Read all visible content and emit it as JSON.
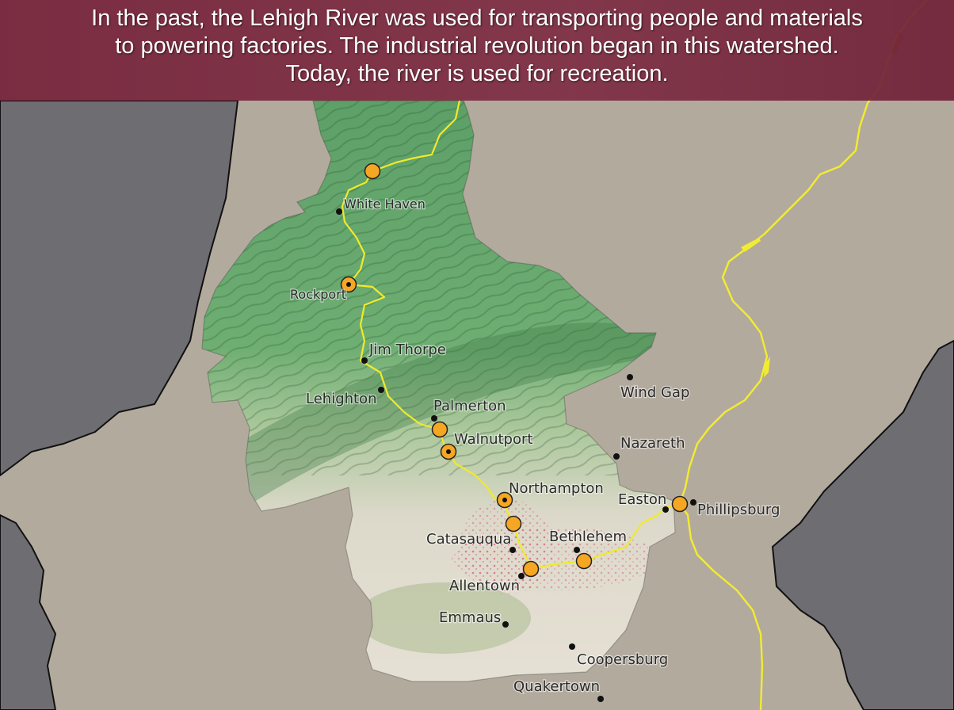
{
  "banner": {
    "text": "In the past, the Lehigh River was used for transporting people and materials\nto powering factories. The industrial revolution began in this watershed.\nToday, the river is used for recreation."
  },
  "colors": {
    "background_land": "#b3aa9e",
    "outside_region": "#6e6e72",
    "watershed_upper": "#5fa36a",
    "watershed_lower": "#e3dfd2",
    "river": "#f0ea2a",
    "site_marker": "#f5a623",
    "city_dot": "#111111"
  },
  "cities": [
    {
      "id": "white-haven",
      "name": "White Haven"
    },
    {
      "id": "rockport",
      "name": "Rockport"
    },
    {
      "id": "jim-thorpe",
      "name": "Jim Thorpe"
    },
    {
      "id": "lehighton",
      "name": "Lehighton"
    },
    {
      "id": "palmerton",
      "name": "Palmerton"
    },
    {
      "id": "walnutport",
      "name": "Walnutport"
    },
    {
      "id": "wind-gap",
      "name": "Wind Gap"
    },
    {
      "id": "nazareth",
      "name": "Nazareth"
    },
    {
      "id": "northampton",
      "name": "Northampton"
    },
    {
      "id": "easton",
      "name": "Easton"
    },
    {
      "id": "phillipsburg",
      "name": "Phillipsburg"
    },
    {
      "id": "catasauqua",
      "name": "Catasauqua"
    },
    {
      "id": "bethlehem",
      "name": "Bethlehem"
    },
    {
      "id": "allentown",
      "name": "Allentown"
    },
    {
      "id": "emmaus",
      "name": "Emmaus"
    },
    {
      "id": "coopersburg",
      "name": "Coopersburg"
    },
    {
      "id": "quakertown",
      "name": "Quakertown"
    }
  ],
  "sites": [
    {
      "id": "site-1",
      "center_dot": false
    },
    {
      "id": "site-2",
      "center_dot": true
    },
    {
      "id": "site-3",
      "center_dot": false
    },
    {
      "id": "site-4",
      "center_dot": true
    },
    {
      "id": "site-5",
      "center_dot": true
    },
    {
      "id": "site-6",
      "center_dot": false
    },
    {
      "id": "site-7",
      "center_dot": false
    },
    {
      "id": "site-8",
      "center_dot": false
    },
    {
      "id": "site-9",
      "center_dot": false
    }
  ]
}
